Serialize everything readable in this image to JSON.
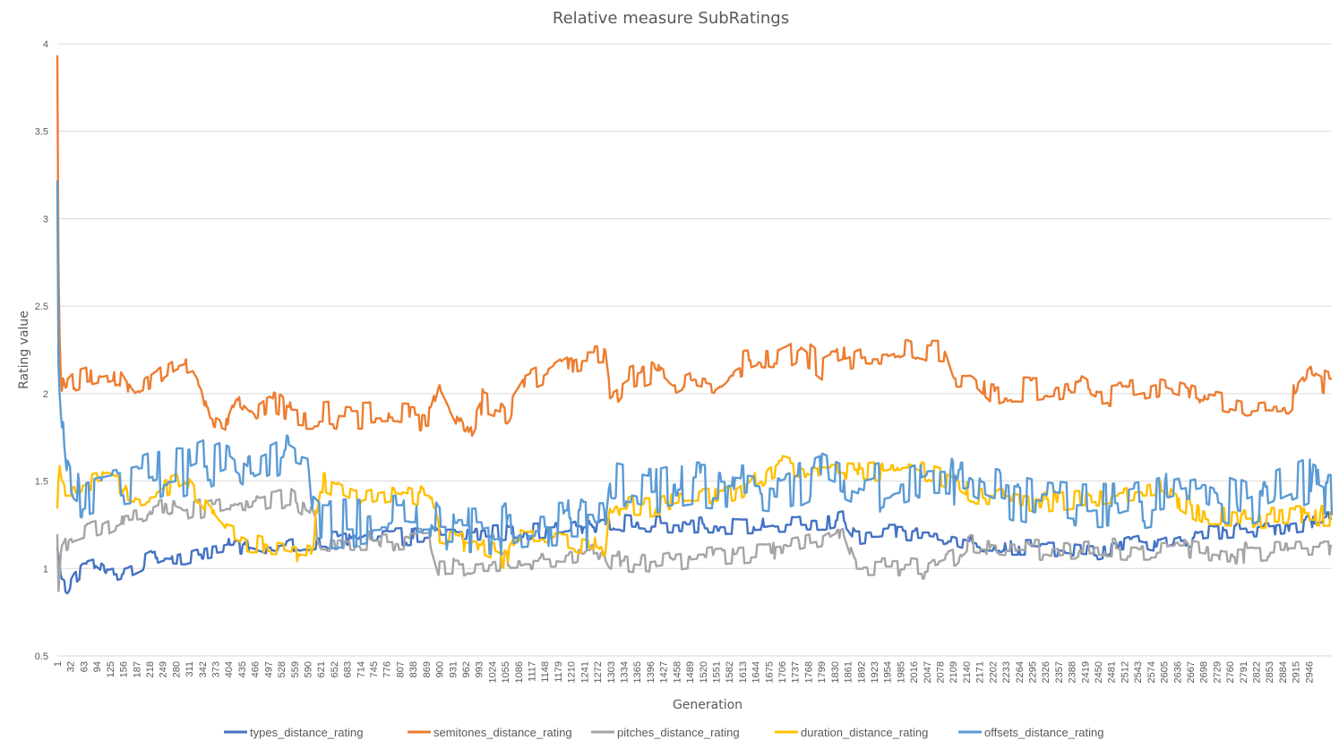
{
  "chart_data": {
    "type": "line",
    "title": "Relative measure SubRatings",
    "xlabel": "Generation",
    "ylabel": "Rating value",
    "ylim": [
      0.5,
      4
    ],
    "y_ticks": [
      "0.5",
      "1",
      "1.5",
      "2",
      "2.5",
      "3",
      "3.5",
      "4"
    ],
    "x_range": [
      1,
      3000
    ],
    "x_ticks": [
      1,
      32,
      63,
      94,
      125,
      156,
      187,
      218,
      249,
      280,
      311,
      342,
      373,
      404,
      435,
      466,
      497,
      528,
      559,
      590,
      621,
      652,
      683,
      714,
      745,
      776,
      807,
      838,
      869,
      900,
      931,
      962,
      993,
      1024,
      1055,
      1086,
      1117,
      1148,
      1179,
      1210,
      1241,
      1272,
      1303,
      1334,
      1365,
      1396,
      1427,
      1458,
      1489,
      1520,
      1551,
      1582,
      1613,
      1644,
      1675,
      1706,
      1737,
      1768,
      1799,
      1830,
      1861,
      1892,
      1923,
      1954,
      1985,
      2016,
      2047,
      2078,
      2109,
      2140,
      2171,
      2202,
      2233,
      2264,
      2295,
      2326,
      2357,
      2388,
      2419,
      2450,
      2481,
      2512,
      2543,
      2574,
      2605,
      2636,
      2667,
      2698,
      2729,
      2760,
      2791,
      2822,
      2853,
      2884,
      2915,
      2946
    ],
    "grid": "horizontal",
    "legend_position": "bottom",
    "series": [
      {
        "name": "types_distance_rating",
        "color": "#4472C4",
        "noise": 0.05,
        "x": [
          1,
          10,
          25,
          40,
          60,
          90,
          120,
          150,
          180,
          220,
          250,
          300,
          350,
          400,
          450,
          500,
          550,
          600,
          620,
          700,
          800,
          900,
          1000,
          1100,
          1200,
          1290,
          1300,
          1400,
          1500,
          1600,
          1700,
          1800,
          1850,
          1880,
          1950,
          2050,
          2110,
          2150,
          2250,
          2350,
          2450,
          2550,
          2600,
          2700,
          2800,
          2900,
          2990
        ],
        "values": [
          1.1,
          0.92,
          0.88,
          0.95,
          1.0,
          1.02,
          0.96,
          0.98,
          1.0,
          1.05,
          1.08,
          1.07,
          1.1,
          1.12,
          1.13,
          1.1,
          1.12,
          1.15,
          1.16,
          1.16,
          1.18,
          1.19,
          1.2,
          1.21,
          1.22,
          1.23,
          1.27,
          1.25,
          1.25,
          1.24,
          1.25,
          1.25,
          1.28,
          1.18,
          1.2,
          1.2,
          1.18,
          1.15,
          1.12,
          1.12,
          1.1,
          1.15,
          1.12,
          1.2,
          1.22,
          1.25,
          1.28
        ]
      },
      {
        "name": "semitones_distance_rating",
        "color": "#ED7D31",
        "noise": 0.08,
        "x": [
          1,
          2,
          5,
          10,
          20,
          40,
          80,
          120,
          150,
          180,
          220,
          280,
          320,
          340,
          360,
          400,
          430,
          470,
          500,
          550,
          600,
          640,
          700,
          800,
          880,
          900,
          940,
          960,
          1000,
          1060,
          1100,
          1150,
          1200,
          1240,
          1290,
          1300,
          1350,
          1400,
          1450,
          1500,
          1550,
          1600,
          1650,
          1700,
          1750,
          1800,
          1850,
          1900,
          1950,
          2000,
          2050,
          2090,
          2110,
          2150,
          2200,
          2250,
          2300,
          2400,
          2450,
          2500,
          2550,
          2600,
          2700,
          2800,
          2900,
          2950,
          2990
        ],
        "values": [
          4.0,
          3.2,
          2.5,
          2.1,
          2.0,
          2.05,
          2.08,
          2.1,
          2.12,
          2.0,
          2.05,
          2.15,
          2.18,
          2.1,
          1.85,
          1.8,
          2.0,
          1.9,
          1.95,
          1.88,
          1.87,
          1.88,
          1.87,
          1.87,
          1.86,
          2.05,
          1.85,
          1.75,
          1.95,
          1.9,
          2.05,
          2.1,
          2.18,
          2.2,
          2.2,
          2.0,
          2.08,
          2.12,
          2.02,
          2.08,
          2.05,
          2.15,
          2.2,
          2.18,
          2.25,
          2.15,
          2.2,
          2.25,
          2.25,
          2.3,
          2.25,
          2.25,
          2.1,
          2.1,
          1.98,
          2.02,
          2.02,
          2.05,
          1.98,
          2.0,
          2.02,
          2.05,
          1.97,
          1.92,
          1.95,
          2.1,
          2.05
        ]
      },
      {
        "name": "pitches_distance_rating",
        "color": "#A5A5A5",
        "noise": 0.06,
        "x": [
          1,
          3,
          6,
          10,
          20,
          40,
          60,
          100,
          150,
          200,
          250,
          300,
          350,
          400,
          450,
          500,
          550,
          600,
          620,
          700,
          800,
          880,
          900,
          950,
          1000,
          1100,
          1200,
          1290,
          1300,
          1400,
          1500,
          1600,
          1700,
          1800,
          1850,
          1880,
          1950,
          2050,
          2110,
          2150,
          2250,
          2350,
          2450,
          2550,
          2650,
          2750,
          2850,
          2990
        ],
        "values": [
          1.2,
          0.85,
          0.95,
          1.1,
          1.15,
          1.18,
          1.2,
          1.22,
          1.28,
          1.3,
          1.35,
          1.3,
          1.35,
          1.38,
          1.35,
          1.38,
          1.4,
          1.3,
          1.16,
          1.15,
          1.16,
          1.17,
          1.0,
          1.0,
          1.04,
          1.05,
          1.05,
          1.1,
          1.05,
          1.02,
          1.06,
          1.08,
          1.1,
          1.15,
          1.22,
          1.0,
          1.0,
          1.0,
          1.05,
          1.15,
          1.12,
          1.1,
          1.12,
          1.1,
          1.12,
          1.08,
          1.1,
          1.1
        ]
      },
      {
        "name": "duration_distance_rating",
        "color": "#FFC000",
        "noise": 0.06,
        "x": [
          1,
          5,
          10,
          20,
          40,
          80,
          120,
          160,
          200,
          250,
          300,
          330,
          360,
          400,
          450,
          500,
          550,
          600,
          610,
          620,
          700,
          800,
          880,
          900,
          1000,
          1060,
          1080,
          1100,
          1200,
          1270,
          1290,
          1300,
          1400,
          1500,
          1600,
          1700,
          1750,
          1800,
          1900,
          2000,
          2100,
          2150,
          2200,
          2300,
          2400,
          2500,
          2600,
          2700,
          2800,
          2900,
          2990
        ],
        "values": [
          1.3,
          1.6,
          1.5,
          1.45,
          1.45,
          1.48,
          1.5,
          1.45,
          1.42,
          1.45,
          1.5,
          1.4,
          1.3,
          1.2,
          1.15,
          1.12,
          1.1,
          1.08,
          1.35,
          1.5,
          1.4,
          1.45,
          1.4,
          1.18,
          1.12,
          1.05,
          1.2,
          1.18,
          1.16,
          1.12,
          1.08,
          1.35,
          1.35,
          1.4,
          1.42,
          1.6,
          1.58,
          1.55,
          1.55,
          1.58,
          1.5,
          1.42,
          1.4,
          1.38,
          1.4,
          1.42,
          1.45,
          1.3,
          1.28,
          1.3,
          1.3
        ]
      },
      {
        "name": "offsets_distance_rating",
        "color": "#5B9BD5",
        "noise": 0.15,
        "x": [
          1,
          2,
          4,
          8,
          15,
          25,
          40,
          60,
          100,
          150,
          200,
          250,
          300,
          350,
          400,
          450,
          500,
          540,
          560,
          590,
          600,
          620,
          700,
          800,
          880,
          900,
          1000,
          1100,
          1200,
          1290,
          1300,
          1400,
          1500,
          1600,
          1700,
          1800,
          1850,
          1900,
          2000,
          2050,
          2100,
          2110,
          2150,
          2200,
          2300,
          2400,
          2500,
          2600,
          2700,
          2800,
          2900,
          2950,
          2990
        ],
        "values": [
          3.3,
          2.5,
          2.2,
          2.0,
          1.8,
          1.55,
          1.45,
          1.42,
          1.45,
          1.48,
          1.5,
          1.55,
          1.55,
          1.6,
          1.65,
          1.55,
          1.6,
          1.65,
          1.62,
          1.6,
          1.3,
          1.25,
          1.25,
          1.28,
          1.28,
          1.2,
          1.2,
          1.25,
          1.25,
          1.25,
          1.5,
          1.45,
          1.5,
          1.48,
          1.45,
          1.55,
          1.5,
          1.45,
          1.5,
          1.55,
          1.55,
          1.48,
          1.5,
          1.45,
          1.38,
          1.35,
          1.35,
          1.4,
          1.45,
          1.35,
          1.45,
          1.5,
          1.45
        ]
      }
    ]
  }
}
